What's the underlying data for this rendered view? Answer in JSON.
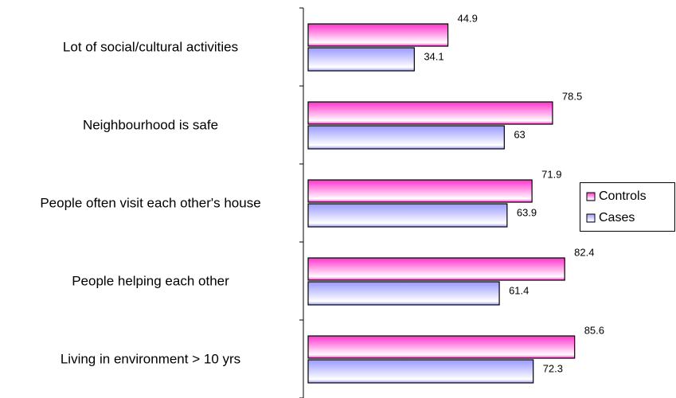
{
  "chart_data": {
    "type": "hbar",
    "categories": [
      "Lot of social/cultural activities",
      "Neighbourhood is safe",
      "People often visit each other's house",
      "People helping each other",
      "Living in environment > 10 yrs"
    ],
    "series": [
      {
        "name": "Controls",
        "color": "#ff33cc",
        "values": [
          44.9,
          78.5,
          71.9,
          82.4,
          85.6
        ]
      },
      {
        "name": "Cases",
        "color": "#9999ff",
        "values": [
          34.1,
          63,
          63.9,
          61.4,
          72.3
        ]
      }
    ],
    "xlim": [
      0,
      100
    ],
    "legend": "right"
  }
}
